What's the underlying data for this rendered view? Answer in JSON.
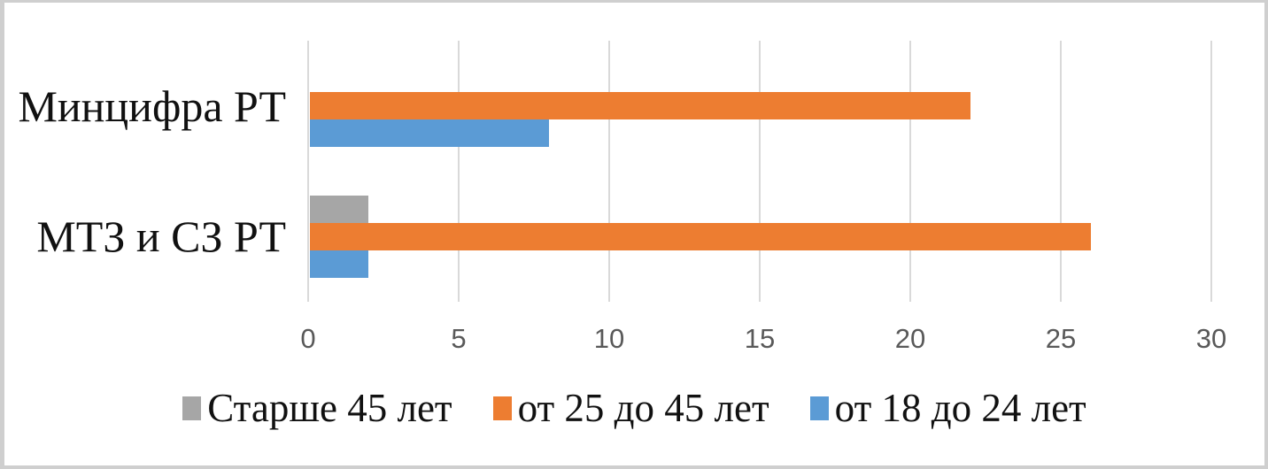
{
  "frame": {
    "background": "#ffffff",
    "border_color": "#cfcfcf"
  },
  "chart_data": {
    "type": "bar",
    "orientation": "horizontal",
    "title": "",
    "categories": [
      "Минцифра РТ",
      "МТЗ и СЗ РТ"
    ],
    "series": [
      {
        "name": "Старше 45 лет",
        "color": "#a6a6a6",
        "values": [
          0,
          2
        ]
      },
      {
        "name": "от 25 до 45 лет",
        "color": "#ed7d31",
        "values": [
          22,
          26
        ]
      },
      {
        "name": "от 18 до 24 лет",
        "color": "#5b9bd5",
        "values": [
          8,
          2
        ]
      }
    ],
    "xlim": [
      0,
      30
    ],
    "xticks": [
      0,
      5,
      10,
      15,
      20,
      25,
      30
    ],
    "grid": true,
    "gridline_color": "#d9d9d9",
    "tick_label_color": "#595959",
    "category_label_color": "#111111",
    "legend_position": "bottom",
    "legend_text_color": "#111111"
  }
}
